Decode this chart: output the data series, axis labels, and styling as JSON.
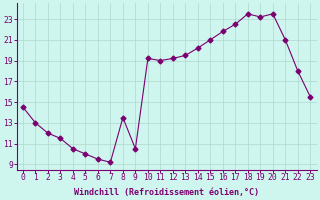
{
  "x": [
    0,
    1,
    2,
    3,
    4,
    5,
    6,
    7,
    8,
    9,
    10,
    11,
    12,
    13,
    14,
    15,
    16,
    17,
    18,
    19,
    20,
    21,
    22,
    23
  ],
  "y": [
    14.5,
    13.0,
    12.0,
    11.5,
    10.5,
    10.0,
    9.5,
    9.2,
    13.5,
    10.5,
    19.2,
    19.0,
    19.2,
    19.5,
    20.2,
    21.0,
    21.8,
    22.5,
    23.5,
    23.2,
    23.5,
    21.0,
    18.0,
    15.5
  ],
  "line_color": "#7B0070",
  "marker": "D",
  "marker_size": 2.5,
  "bg_color": "#cef5ee",
  "grid_color": "#b0d8cc",
  "xlabel": "Windchill (Refroidissement éolien,°C)",
  "ylim": [
    8.5,
    24.5
  ],
  "xlim": [
    -0.5,
    23.5
  ],
  "yticks": [
    9,
    11,
    13,
    15,
    17,
    19,
    21,
    23
  ],
  "xticks": [
    0,
    1,
    2,
    3,
    4,
    5,
    6,
    7,
    8,
    9,
    10,
    11,
    12,
    13,
    14,
    15,
    16,
    17,
    18,
    19,
    20,
    21,
    22,
    23
  ],
  "label_fontsize": 6.0,
  "tick_fontsize": 5.8
}
